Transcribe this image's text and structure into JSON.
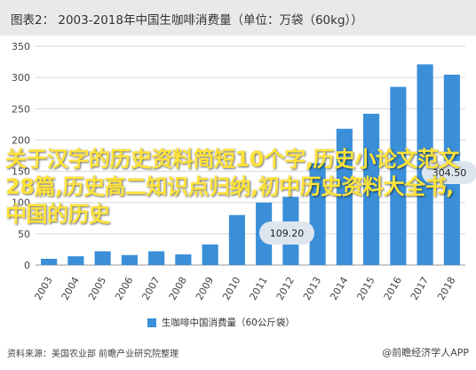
{
  "header": {
    "title": "图表2：  2003-2018年中国生咖啡消费量（单位：万袋（60kg））"
  },
  "overlay_text": "关于汉字的历史资料简短10个字,历史小论文范文28篇,历史高二知识点归纳,初中历史资料大全书,中国的历史",
  "source_text": "资料来源：美国农业部 前瞻产业研究院整理",
  "brand_text": "@前瞻经济学人APP",
  "callouts": {
    "c2018": "304.50",
    "c2012": "109.20"
  },
  "colors": {
    "bar": "#3a8fd8",
    "title_bg": "#e9e9e9"
  },
  "chart_data": {
    "type": "bar",
    "categories": [
      "2003",
      "2004",
      "2005",
      "2006",
      "2007",
      "2008",
      "2009",
      "2010",
      "2011",
      "2012",
      "2013",
      "2014",
      "2015",
      "2016",
      "2017",
      "2018"
    ],
    "series": [
      {
        "name": "生咖啡中国消费量（60公斤袋）",
        "values": [
          10,
          14,
          22,
          16,
          22,
          17,
          33,
          80,
          100,
          109.2,
          163,
          218,
          242,
          285,
          321,
          304.5
        ]
      }
    ],
    "yticks": [
      0,
      50,
      100,
      150,
      200,
      250,
      300,
      350
    ],
    "ylim": [
      0,
      350
    ],
    "legend_position": "bottom",
    "grid": true
  }
}
